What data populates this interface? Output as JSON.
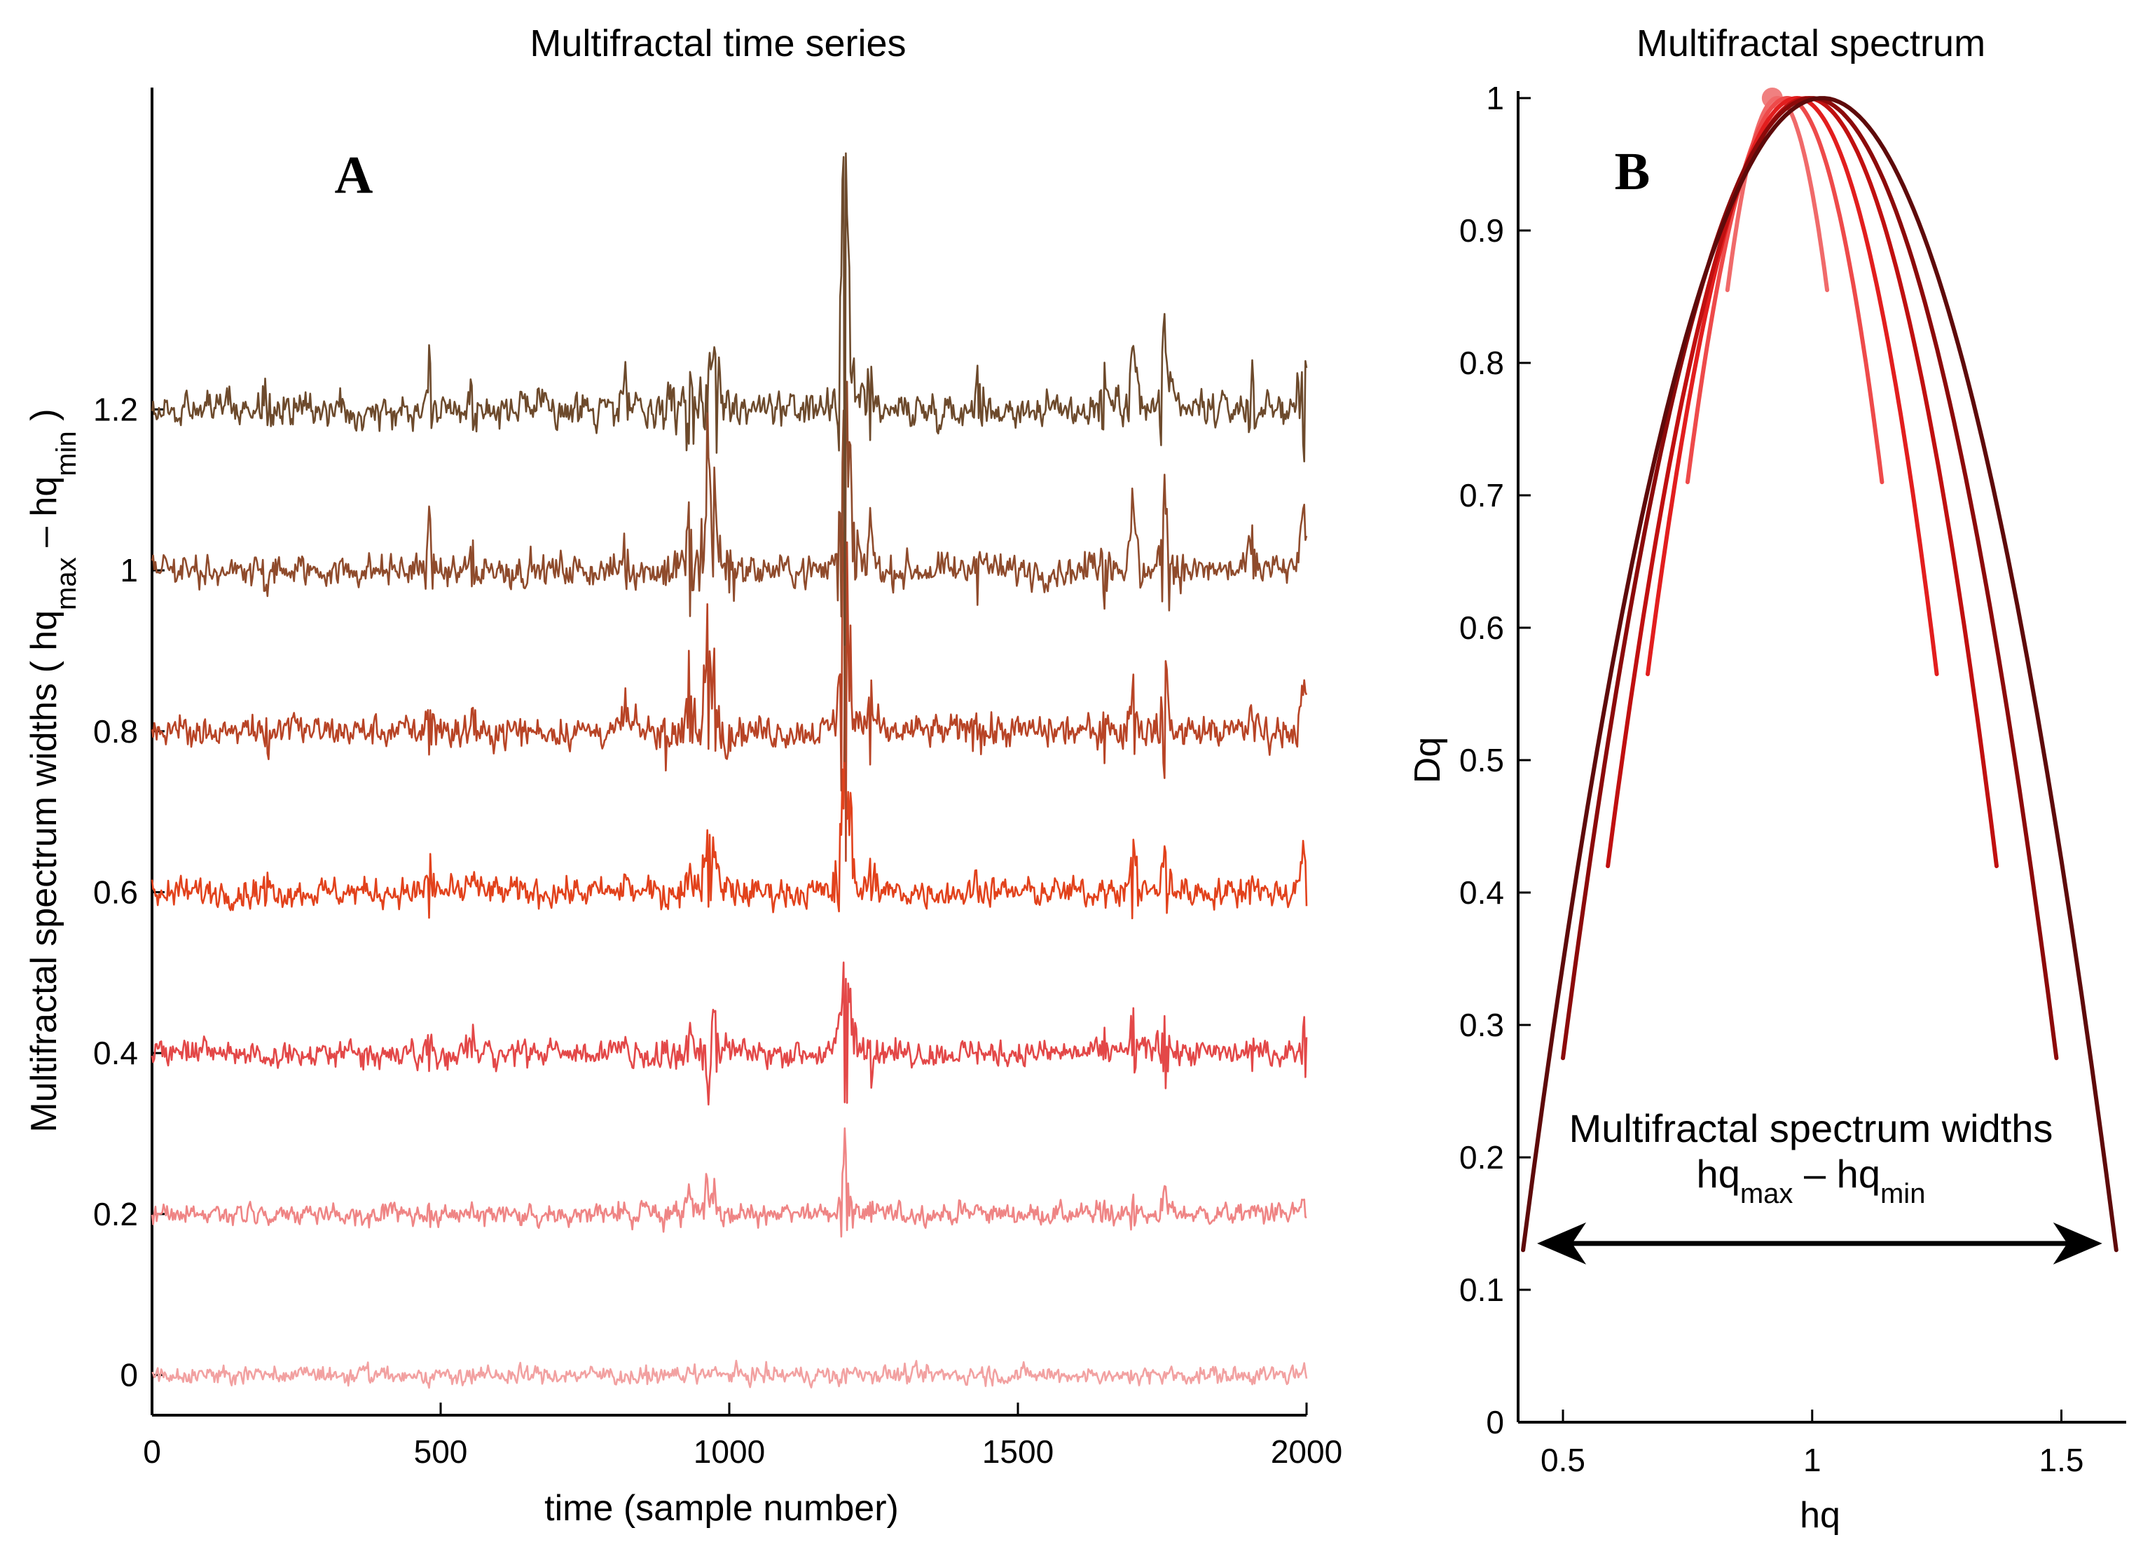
{
  "chart_data": [
    {
      "panel_label": "A",
      "type": "line",
      "title": "Multifractal time series",
      "xlabel": "time (sample number)",
      "ylabel": {
        "text": "Multifractal spectrum widths ( hq",
        "sub1": "max",
        "middle": " – hq",
        "sub2": "min",
        "end": " )"
      },
      "xlim": [
        0,
        2000
      ],
      "ylim": [
        -0.05,
        1.6
      ],
      "x_ticks": [
        "0",
        "500",
        "1000",
        "1500",
        "2000"
      ],
      "y_ticks": [
        "0",
        "0.2",
        "0.4",
        "0.6",
        "0.8",
        "1",
        "1.2"
      ],
      "series": [
        {
          "name": "width 0",
          "baseline": 0.0,
          "noise": 0.01,
          "spike_scale": 0.0,
          "color": "#f2a1a1"
        },
        {
          "name": "width 0.2",
          "baseline": 0.2,
          "noise": 0.01,
          "spike_scale": 0.25,
          "color": "#ef8585"
        },
        {
          "name": "width 0.4",
          "baseline": 0.4,
          "noise": 0.011,
          "spike_scale": 0.45,
          "color": "#e34848"
        },
        {
          "name": "width 0.6",
          "baseline": 0.6,
          "noise": 0.011,
          "spike_scale": 0.65,
          "color": "#e2421c"
        },
        {
          "name": "width 0.8",
          "baseline": 0.8,
          "noise": 0.011,
          "spike_scale": 0.8,
          "color": "#b84426"
        },
        {
          "name": "width 1",
          "baseline": 1.0,
          "noise": 0.01,
          "spike_scale": 0.95,
          "color": "#8f4b2c"
        },
        {
          "name": "width 1.2",
          "baseline": 1.2,
          "noise": 0.01,
          "spike_scale": 1.0,
          "color": "#6d4a2c"
        }
      ],
      "spikes": [
        {
          "x": 200,
          "amp": -0.03
        },
        {
          "x": 480,
          "amp": 0.06
        },
        {
          "x": 555,
          "amp": 0.04
        },
        {
          "x": 820,
          "amp": 0.04
        },
        {
          "x": 930,
          "amp": 0.08
        },
        {
          "x": 962,
          "amp": 0.15
        },
        {
          "x": 975,
          "amp": 0.1
        },
        {
          "x": 1200,
          "amp": 0.35
        },
        {
          "x": 1210,
          "amp": 0.08
        },
        {
          "x": 1245,
          "amp": 0.06
        },
        {
          "x": 1430,
          "amp": 0.04
        },
        {
          "x": 1650,
          "amp": 0.05
        },
        {
          "x": 1700,
          "amp": 0.1
        },
        {
          "x": 1755,
          "amp": 0.12
        },
        {
          "x": 1905,
          "amp": 0.05
        },
        {
          "x": 1995,
          "amp": 0.09
        }
      ]
    },
    {
      "panel_label": "B",
      "type": "line",
      "title": "Multifractal spectrum",
      "xlabel": "hq",
      "ylabel": "Dq",
      "xlim": [
        0.41,
        1.63
      ],
      "ylim": [
        0,
        1
      ],
      "x_ticks": [
        "0.5",
        "1",
        "1.5"
      ],
      "y_ticks": [
        "0",
        "0.1",
        "0.2",
        "0.3",
        "0.4",
        "0.5",
        "0.6",
        "0.7",
        "0.8",
        "0.9",
        "1"
      ],
      "series": [
        {
          "name": "width 0",
          "peak": 0.92,
          "hmin": 0.91,
          "hmax": 0.93,
          "dmin": 0.997,
          "color": "#f08080"
        },
        {
          "name": "width 0.2",
          "peak": 0.93,
          "hmin": 0.83,
          "hmax": 1.03,
          "dmin": 0.855,
          "color": "#f06a6a"
        },
        {
          "name": "width 0.4",
          "peak": 0.95,
          "hmin": 0.75,
          "hmax": 1.14,
          "dmin": 0.71,
          "color": "#ee4a4a"
        },
        {
          "name": "width 0.6",
          "peak": 0.97,
          "hmin": 0.67,
          "hmax": 1.25,
          "dmin": 0.565,
          "color": "#e21e1e"
        },
        {
          "name": "width 0.8",
          "peak": 0.99,
          "hmin": 0.59,
          "hmax": 1.37,
          "dmin": 0.42,
          "color": "#c01010"
        },
        {
          "name": "width 1",
          "peak": 1.0,
          "hmin": 0.5,
          "hmax": 1.49,
          "dmin": 0.275,
          "color": "#8c0a0a"
        },
        {
          "name": "width 1.2",
          "peak": 1.02,
          "hmin": 0.42,
          "hmax": 1.61,
          "dmin": 0.13,
          "color": "#5e0a0a"
        }
      ],
      "annotation": {
        "line1": "Multifractal spectrum widths",
        "hq1": "hq",
        "sub1": "max",
        "dash": " – hq",
        "sub2": "min"
      },
      "arrow_y": 0.135
    }
  ]
}
